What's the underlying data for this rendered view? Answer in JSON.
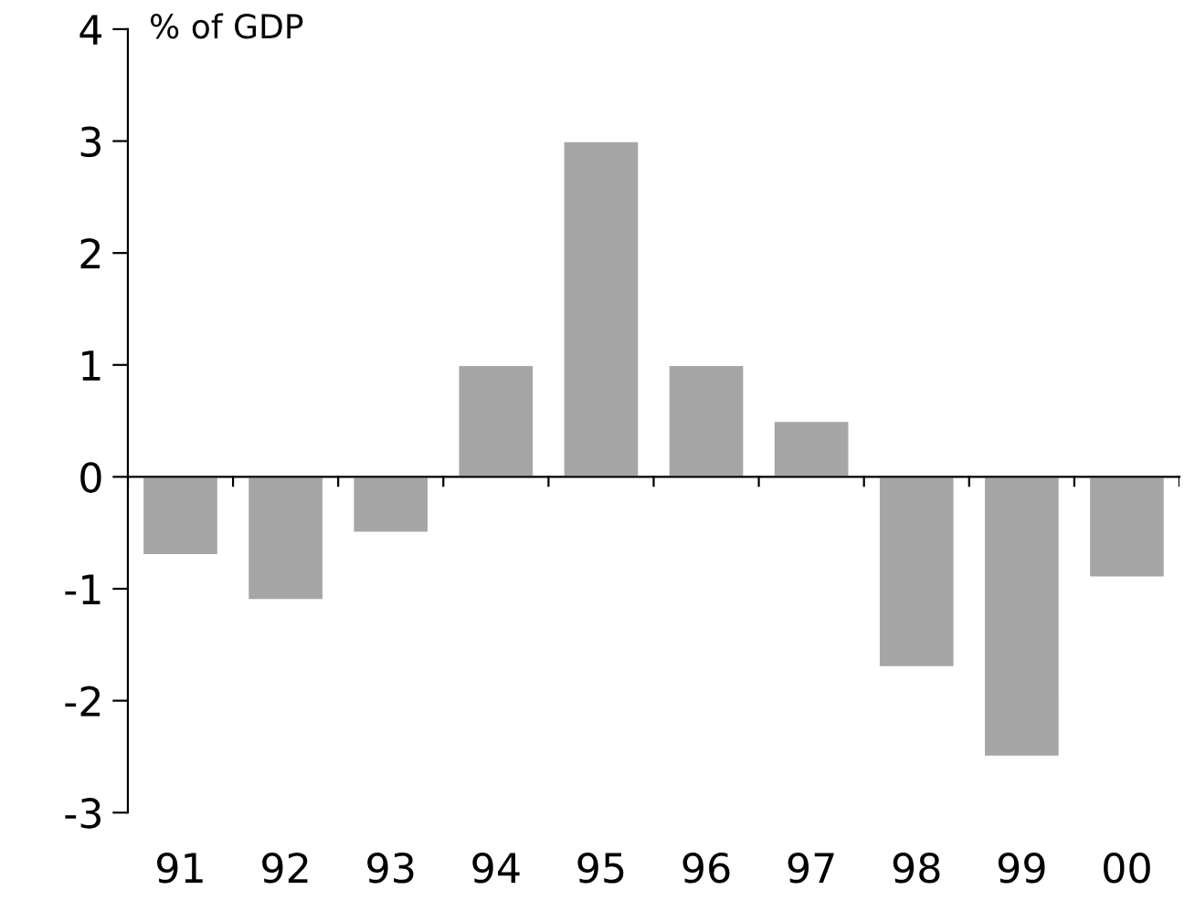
{
  "chart_data": {
    "type": "bar",
    "ylabel": "% of GDP",
    "categories": [
      "91",
      "92",
      "93",
      "94",
      "95",
      "96",
      "97",
      "98",
      "99",
      "00"
    ],
    "values": [
      -0.7,
      -1.1,
      -0.5,
      1.0,
      3.0,
      1.0,
      0.5,
      -1.7,
      -2.5,
      -0.9
    ],
    "color": "#a6a6a6",
    "ylim": [
      -3,
      4
    ],
    "yticks": [
      -3,
      -2,
      -1,
      0,
      1,
      2,
      3,
      4
    ],
    "legend": false
  }
}
